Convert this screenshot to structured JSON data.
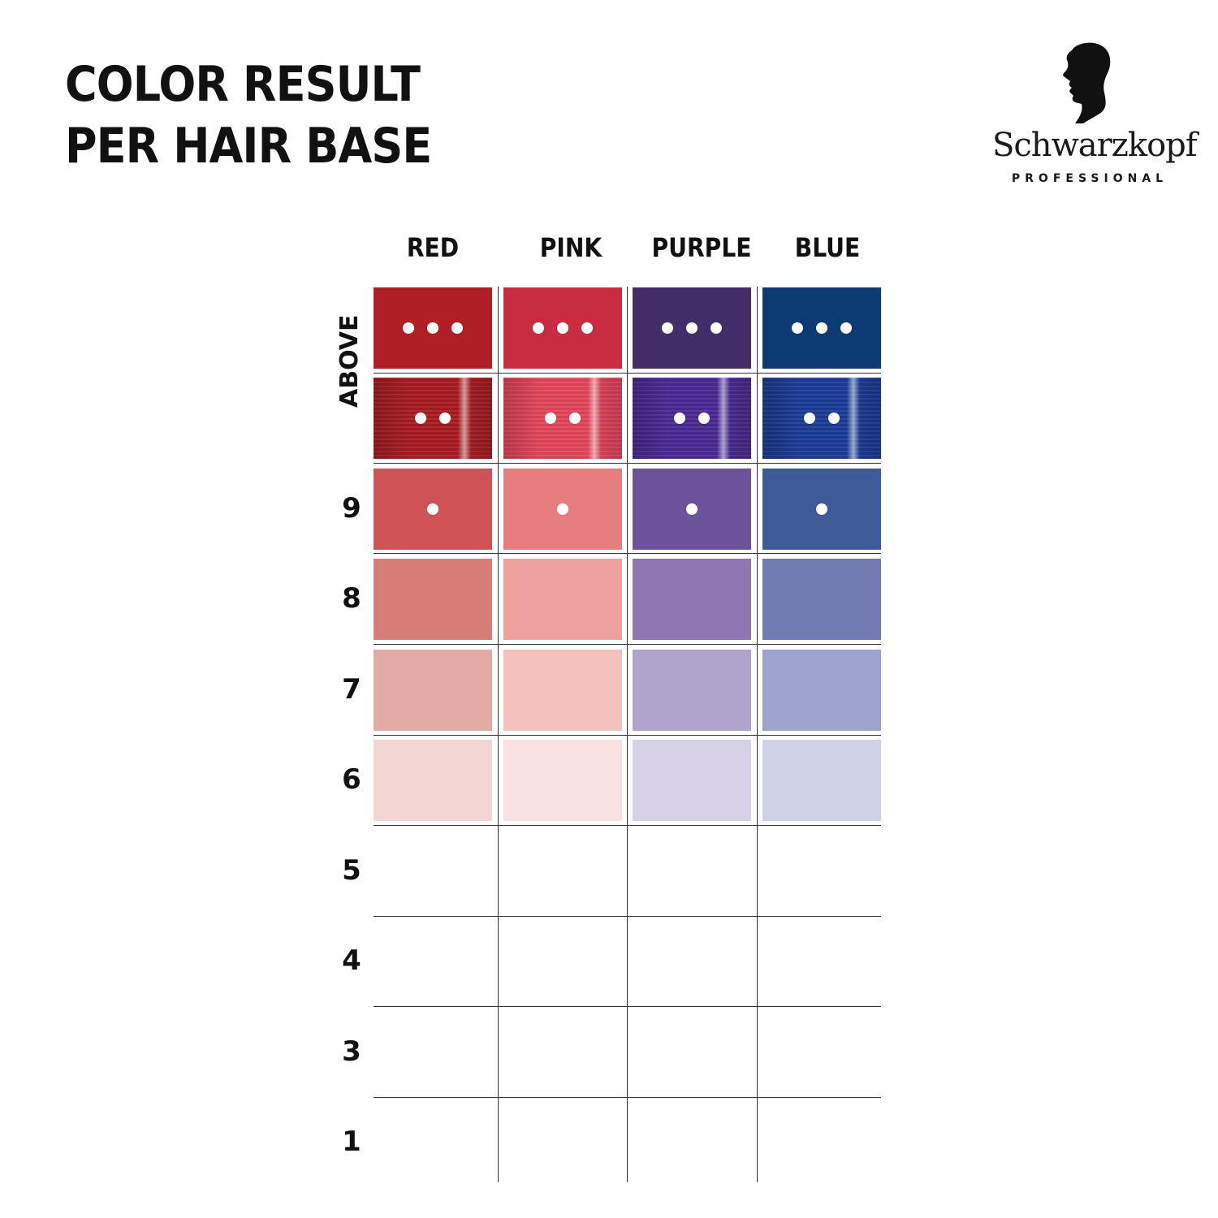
{
  "title": {
    "line1": "COLOR RESULT",
    "line2": "PER HAIR BASE"
  },
  "brand": {
    "name": "Schwarzkopf",
    "sub": "PROFESSIONAL"
  },
  "columns": [
    "RED",
    "PINK",
    "PURPLE",
    "BLUE"
  ],
  "above_label": "ABOVE",
  "rows": [
    {
      "label": "",
      "dots": 3
    },
    {
      "label": "",
      "dots": 2
    },
    {
      "label": "9",
      "dots": 1
    },
    {
      "label": "8",
      "dots": 0
    },
    {
      "label": "7",
      "dots": 0
    },
    {
      "label": "6",
      "dots": 0
    },
    {
      "label": "5",
      "dots": 0
    },
    {
      "label": "4",
      "dots": 0
    },
    {
      "label": "3",
      "dots": 0
    },
    {
      "label": "1",
      "dots": 0
    }
  ],
  "swatch_colors": [
    [
      "#b01f26",
      "#c72c41",
      "#412d68",
      "#0d3a72"
    ],
    [
      "#a81c22",
      "#e4455a",
      "#4a2a94",
      "#1a3c96"
    ],
    [
      "#cf5257",
      "#e87d80",
      "#6a539a",
      "#3f5a98"
    ],
    [
      "#d77e79",
      "#eea09f",
      "#8d77b3",
      "#707cb1"
    ],
    [
      "#e3aba5",
      "#f4c1bf",
      "#b0a3cc",
      "#9ea3cd"
    ],
    [
      "#f2d6d3",
      "#f9e1e2",
      "#d7d1e6",
      "#d0d2e7"
    ]
  ]
}
